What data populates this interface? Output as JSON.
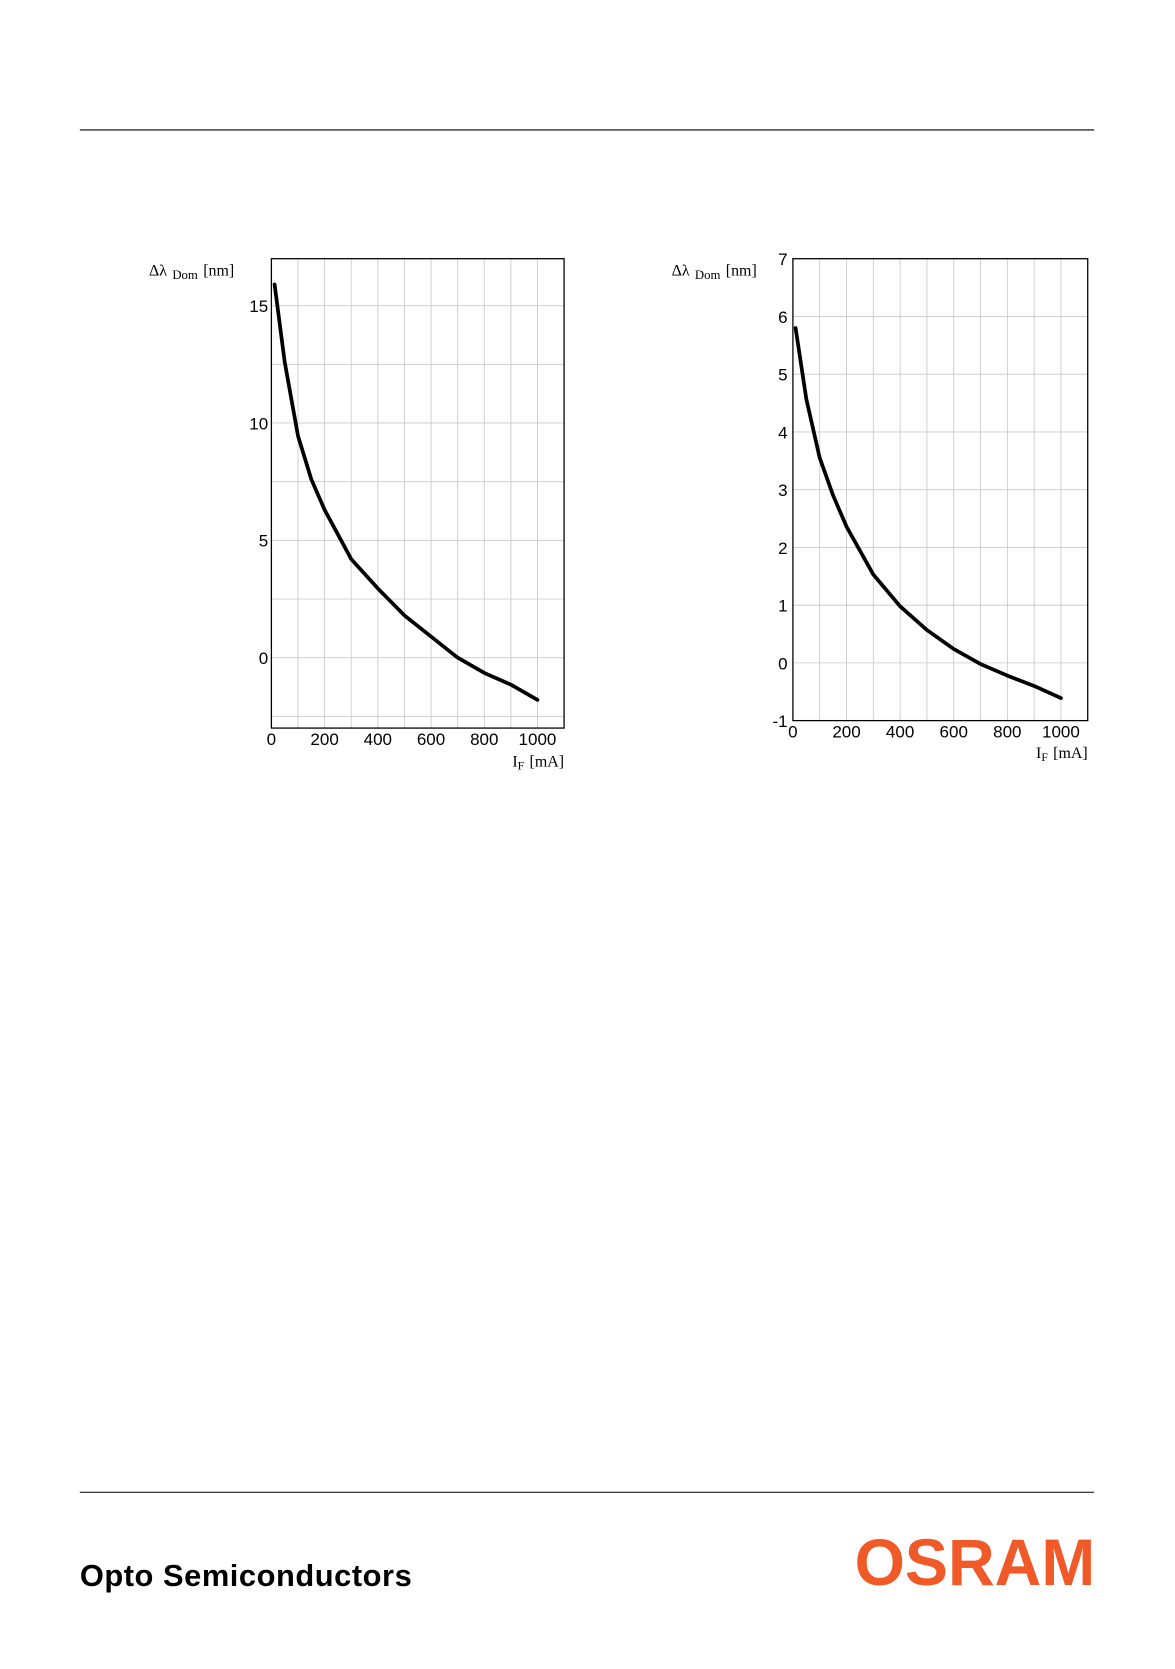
{
  "chart_data": [
    {
      "type": "line",
      "ylabel": {
        "symbol": "Δλ",
        "subscript": "Dom",
        "unit": "[nm]"
      },
      "xlabel": {
        "symbol": "I",
        "subscript": "F",
        "unit": "[mA]"
      },
      "x": [
        12,
        50,
        100,
        150,
        200,
        300,
        400,
        500,
        600,
        700,
        800,
        900,
        1000
      ],
      "values": [
        15.9,
        12.6,
        9.45,
        7.6,
        6.3,
        4.2,
        2.95,
        1.8,
        0.9,
        0,
        -0.65,
        -1.15,
        -1.8
      ],
      "color": "#000000",
      "xlim": [
        0,
        1100
      ],
      "ylim": [
        -3,
        17
      ],
      "xticks": [
        0,
        200,
        400,
        600,
        800,
        1000
      ],
      "minor_xticks": [
        100,
        300,
        500,
        700,
        900
      ],
      "yticks": [
        0,
        5,
        10,
        15
      ],
      "minor_yticks": [
        -2.5,
        2.5,
        7.5,
        12.5
      ],
      "grid": true
    },
    {
      "type": "line",
      "ylabel": {
        "symbol": "Δλ",
        "subscript": "Dom",
        "unit": "[nm]"
      },
      "xlabel": {
        "symbol": "I",
        "subscript": "F",
        "unit": "[mA]"
      },
      "x": [
        10,
        50,
        100,
        150,
        200,
        300,
        400,
        500,
        600,
        700,
        800,
        900,
        1000
      ],
      "values": [
        5.8,
        4.57,
        3.55,
        2.9,
        2.36,
        1.53,
        0.98,
        0.57,
        0.24,
        -0.02,
        -0.22,
        -0.4,
        -0.61
      ],
      "color": "#000000",
      "xlim": [
        0,
        1100
      ],
      "ylim": [
        -1,
        7
      ],
      "xticks": [
        0,
        200,
        400,
        600,
        800,
        1000
      ],
      "minor_xticks": [
        100,
        300,
        500,
        700,
        900
      ],
      "yticks": [
        -1,
        0,
        1,
        2,
        3,
        4,
        5,
        6,
        7
      ],
      "minor_yticks": [],
      "grid": true
    }
  ],
  "footer": {
    "company": "Opto Semiconductors",
    "logo": "OSRAM"
  }
}
